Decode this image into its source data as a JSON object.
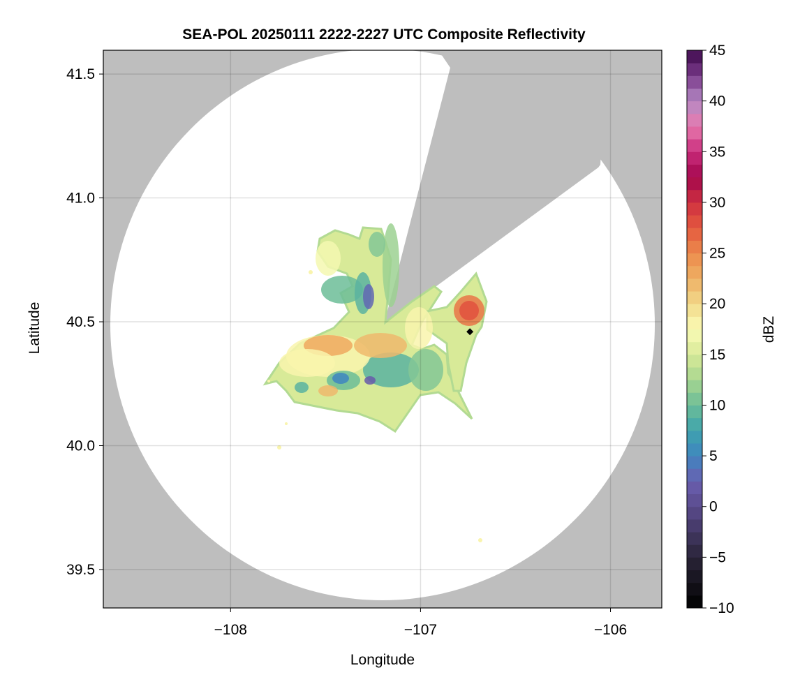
{
  "chart_data": {
    "type": "heatmap",
    "title": "SEA-POL 20250111 2222-2227 UTC Composite Reflectivity",
    "xlabel": "Longitude",
    "ylabel": "Latitude",
    "xlim": [
      -108.67,
      -105.73
    ],
    "ylim": [
      39.345,
      41.596
    ],
    "xticks": [
      -108,
      -107,
      -106
    ],
    "xtick_labels": [
      "−108",
      "−107",
      "−106"
    ],
    "yticks": [
      39.5,
      40.0,
      40.5,
      41.0,
      41.5
    ],
    "ytick_labels": [
      "39.5",
      "40.0",
      "40.5",
      "41.0",
      "41.5"
    ],
    "grid": true,
    "radar_center": {
      "lon": -107.19,
      "lat": 40.49
    },
    "no_data_color": "#bebebe",
    "marker": {
      "lon": -106.74,
      "lat": 40.46,
      "shape": "diamond",
      "color": "#000000"
    },
    "colorbar": {
      "label": "dBZ",
      "range": [
        -10,
        45
      ],
      "ticks": [
        -10,
        -5,
        0,
        5,
        10,
        15,
        20,
        25,
        30,
        35,
        40,
        45
      ],
      "tick_labels": [
        "−10",
        "−5",
        "0",
        "5",
        "10",
        "15",
        "20",
        "25",
        "30",
        "35",
        "40",
        "45"
      ],
      "bins": 44,
      "stops": [
        [
          -10,
          "#000000"
        ],
        [
          -5,
          "#2a2438"
        ],
        [
          0,
          "#5a4b8c"
        ],
        [
          2.5,
          "#6a5fb0"
        ],
        [
          5,
          "#3f86c0"
        ],
        [
          7.5,
          "#3fa3ad"
        ],
        [
          10,
          "#6cbd98"
        ],
        [
          12.5,
          "#a8d690"
        ],
        [
          15,
          "#d8ea98"
        ],
        [
          17.5,
          "#fbfbb6"
        ],
        [
          20,
          "#f2d98a"
        ],
        [
          22.5,
          "#eeb064"
        ],
        [
          25,
          "#ec8a4c"
        ],
        [
          27.5,
          "#e4593e"
        ],
        [
          30,
          "#cf3040"
        ],
        [
          32.5,
          "#a3074d"
        ],
        [
          35,
          "#c92c7c"
        ],
        [
          37.5,
          "#e87aae"
        ],
        [
          40,
          "#b48ac4"
        ],
        [
          42.5,
          "#7a3a8a"
        ],
        [
          45,
          "#3e0a4c"
        ]
      ]
    }
  }
}
